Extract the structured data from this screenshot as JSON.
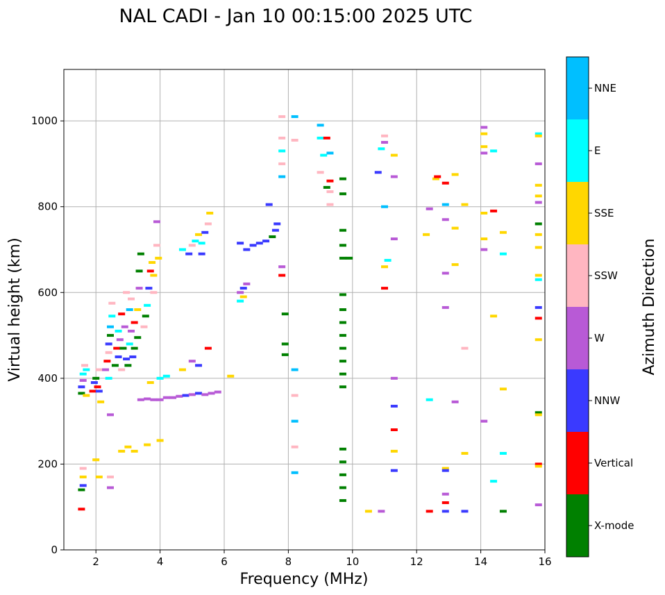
{
  "chart_data": {
    "type": "scatter",
    "title": "NAL CADI - Jan 10 00:15:00 2025 UTC",
    "xlabel": "Frequency (MHz)",
    "ylabel": "Virtual height (km)",
    "xlim": [
      1,
      16
    ],
    "ylim": [
      0,
      1120
    ],
    "xticks": [
      2,
      4,
      6,
      8,
      10,
      12,
      14,
      16
    ],
    "yticks": [
      0,
      200,
      400,
      600,
      800,
      1000
    ],
    "grid": true,
    "colorbar": {
      "title": "Azimuth Direction",
      "categories": [
        {
          "name": "X-mode",
          "color": "#008000"
        },
        {
          "name": "Vertical",
          "color": "#ff0000"
        },
        {
          "name": "NNW",
          "color": "#3a3aff"
        },
        {
          "name": "W",
          "color": "#b85ad6"
        },
        {
          "name": "SSW",
          "color": "#ffb6c1"
        },
        {
          "name": "SSE",
          "color": "#ffd700"
        },
        {
          "name": "E",
          "color": "#00ffff"
        },
        {
          "name": "NNE",
          "color": "#00bfff"
        }
      ]
    },
    "points": [
      [
        1.55,
        95,
        1
      ],
      [
        1.55,
        140,
        0
      ],
      [
        1.6,
        150,
        2
      ],
      [
        1.6,
        170,
        5
      ],
      [
        1.6,
        190,
        4
      ],
      [
        1.55,
        365,
        0
      ],
      [
        1.55,
        380,
        2
      ],
      [
        1.6,
        395,
        3
      ],
      [
        1.6,
        410,
        6
      ],
      [
        1.65,
        430,
        4
      ],
      [
        1.7,
        360,
        5
      ],
      [
        1.7,
        420,
        6
      ],
      [
        1.9,
        370,
        1
      ],
      [
        1.95,
        390,
        2
      ],
      [
        2.0,
        400,
        0
      ],
      [
        2.05,
        380,
        1
      ],
      [
        2.1,
        370,
        2
      ],
      [
        2.1,
        420,
        4
      ],
      [
        2.15,
        345,
        5
      ],
      [
        2.0,
        210,
        5
      ],
      [
        2.1,
        170,
        5
      ],
      [
        2.3,
        420,
        3
      ],
      [
        2.35,
        440,
        1
      ],
      [
        2.4,
        460,
        4
      ],
      [
        2.4,
        480,
        2
      ],
      [
        2.45,
        500,
        0
      ],
      [
        2.45,
        520,
        7
      ],
      [
        2.5,
        545,
        6
      ],
      [
        2.5,
        575,
        4
      ],
      [
        2.4,
        400,
        6
      ],
      [
        2.45,
        170,
        4
      ],
      [
        2.45,
        145,
        3
      ],
      [
        2.45,
        315,
        3
      ],
      [
        2.6,
        430,
        0
      ],
      [
        2.65,
        470,
        1
      ],
      [
        2.7,
        450,
        2
      ],
      [
        2.7,
        510,
        6
      ],
      [
        2.75,
        490,
        3
      ],
      [
        2.8,
        420,
        4
      ],
      [
        2.8,
        550,
        1
      ],
      [
        2.85,
        470,
        0
      ],
      [
        2.9,
        520,
        3
      ],
      [
        2.95,
        445,
        2
      ],
      [
        2.95,
        600,
        4
      ],
      [
        3.0,
        430,
        0
      ],
      [
        3.05,
        480,
        6
      ],
      [
        3.05,
        560,
        7
      ],
      [
        3.1,
        510,
        3
      ],
      [
        3.1,
        585,
        4
      ],
      [
        3.15,
        450,
        2
      ],
      [
        3.2,
        530,
        1
      ],
      [
        3.2,
        470,
        0
      ],
      [
        3.3,
        495,
        0
      ],
      [
        3.3,
        560,
        5
      ],
      [
        3.35,
        610,
        3
      ],
      [
        3.35,
        650,
        0
      ],
      [
        3.4,
        690,
        0
      ],
      [
        3.5,
        520,
        4
      ],
      [
        3.55,
        545,
        0
      ],
      [
        3.6,
        570,
        6
      ],
      [
        3.65,
        610,
        2
      ],
      [
        3.7,
        650,
        1
      ],
      [
        3.75,
        670,
        5
      ],
      [
        3.8,
        600,
        4
      ],
      [
        3.8,
        640,
        5
      ],
      [
        3.9,
        710,
        4
      ],
      [
        3.9,
        765,
        3
      ],
      [
        3.95,
        680,
        5
      ],
      [
        2.8,
        230,
        5
      ],
      [
        3.0,
        240,
        5
      ],
      [
        3.2,
        230,
        5
      ],
      [
        3.6,
        245,
        5
      ],
      [
        4.0,
        255,
        5
      ],
      [
        3.4,
        350,
        3
      ],
      [
        3.6,
        352,
        3
      ],
      [
        3.8,
        350,
        3
      ],
      [
        4.0,
        350,
        3
      ],
      [
        4.2,
        355,
        3
      ],
      [
        4.4,
        355,
        3
      ],
      [
        4.6,
        358,
        3
      ],
      [
        4.8,
        360,
        2
      ],
      [
        5.0,
        362,
        3
      ],
      [
        5.2,
        365,
        2
      ],
      [
        5.4,
        362,
        3
      ],
      [
        5.6,
        365,
        3
      ],
      [
        5.8,
        368,
        3
      ],
      [
        3.7,
        390,
        5
      ],
      [
        4.0,
        400,
        6
      ],
      [
        4.2,
        405,
        6
      ],
      [
        4.7,
        420,
        5
      ],
      [
        5.0,
        440,
        3
      ],
      [
        5.2,
        430,
        2
      ],
      [
        5.5,
        470,
        1
      ],
      [
        6.2,
        405,
        5
      ],
      [
        4.7,
        700,
        6
      ],
      [
        4.9,
        690,
        2
      ],
      [
        5.0,
        710,
        4
      ],
      [
        5.1,
        720,
        6
      ],
      [
        5.2,
        735,
        5
      ],
      [
        5.3,
        715,
        6
      ],
      [
        5.4,
        740,
        2
      ],
      [
        5.5,
        760,
        4
      ],
      [
        5.55,
        785,
        5
      ],
      [
        5.3,
        690,
        2
      ],
      [
        6.5,
        600,
        3
      ],
      [
        6.6,
        610,
        2
      ],
      [
        6.7,
        620,
        3
      ],
      [
        6.5,
        715,
        2
      ],
      [
        6.7,
        700,
        2
      ],
      [
        6.9,
        710,
        2
      ],
      [
        7.1,
        715,
        2
      ],
      [
        7.3,
        720,
        2
      ],
      [
        7.5,
        730,
        0
      ],
      [
        7.6,
        745,
        2
      ],
      [
        7.65,
        760,
        2
      ],
      [
        7.4,
        805,
        2
      ],
      [
        6.5,
        580,
        6
      ],
      [
        6.6,
        590,
        5
      ],
      [
        7.8,
        640,
        1
      ],
      [
        7.8,
        660,
        3
      ],
      [
        7.8,
        870,
        7
      ],
      [
        7.8,
        900,
        4
      ],
      [
        7.8,
        930,
        6
      ],
      [
        7.8,
        960,
        4
      ],
      [
        7.8,
        1010,
        4
      ],
      [
        7.9,
        550,
        0
      ],
      [
        7.9,
        480,
        0
      ],
      [
        7.9,
        455,
        0
      ],
      [
        8.2,
        420,
        7
      ],
      [
        8.2,
        360,
        4
      ],
      [
        8.2,
        300,
        7
      ],
      [
        8.2,
        240,
        4
      ],
      [
        8.2,
        180,
        7
      ],
      [
        8.2,
        1010,
        7
      ],
      [
        8.2,
        955,
        4
      ],
      [
        9.0,
        990,
        7
      ],
      [
        9.0,
        960,
        6
      ],
      [
        9.2,
        960,
        1
      ],
      [
        9.1,
        920,
        6
      ],
      [
        9.3,
        925,
        7
      ],
      [
        9.0,
        880,
        4
      ],
      [
        9.3,
        860,
        1
      ],
      [
        9.2,
        845,
        0
      ],
      [
        9.3,
        805,
        4
      ],
      [
        9.3,
        835,
        4
      ],
      [
        9.7,
        865,
        0
      ],
      [
        9.7,
        830,
        0
      ],
      [
        9.7,
        745,
        0
      ],
      [
        9.7,
        710,
        0
      ],
      [
        9.7,
        680,
        0
      ],
      [
        9.9,
        680,
        0
      ],
      [
        9.7,
        595,
        0
      ],
      [
        9.7,
        560,
        0
      ],
      [
        9.7,
        530,
        0
      ],
      [
        9.7,
        500,
        0
      ],
      [
        9.7,
        470,
        0
      ],
      [
        9.7,
        440,
        0
      ],
      [
        9.7,
        410,
        0
      ],
      [
        9.7,
        380,
        0
      ],
      [
        9.7,
        235,
        0
      ],
      [
        9.7,
        205,
        0
      ],
      [
        9.7,
        175,
        0
      ],
      [
        9.7,
        145,
        0
      ],
      [
        9.7,
        115,
        0
      ],
      [
        10.5,
        90,
        5
      ],
      [
        10.9,
        90,
        3
      ],
      [
        10.8,
        880,
        2
      ],
      [
        10.9,
        935,
        6
      ],
      [
        11.0,
        965,
        4
      ],
      [
        11.0,
        950,
        3
      ],
      [
        11.0,
        800,
        7
      ],
      [
        11.0,
        660,
        5
      ],
      [
        11.0,
        610,
        1
      ],
      [
        11.1,
        675,
        6
      ],
      [
        11.3,
        870,
        3
      ],
      [
        11.3,
        920,
        5
      ],
      [
        11.3,
        725,
        3
      ],
      [
        11.3,
        400,
        3
      ],
      [
        11.3,
        335,
        2
      ],
      [
        11.3,
        280,
        1
      ],
      [
        11.3,
        230,
        5
      ],
      [
        11.3,
        185,
        2
      ],
      [
        12.3,
        735,
        5
      ],
      [
        12.4,
        795,
        3
      ],
      [
        12.6,
        865,
        5
      ],
      [
        12.65,
        870,
        1
      ],
      [
        12.9,
        855,
        1
      ],
      [
        12.9,
        805,
        7
      ],
      [
        12.9,
        770,
        3
      ],
      [
        12.9,
        645,
        3
      ],
      [
        12.9,
        565,
        3
      ],
      [
        13.2,
        875,
        5
      ],
      [
        13.2,
        750,
        5
      ],
      [
        13.2,
        665,
        5
      ],
      [
        13.5,
        805,
        5
      ],
      [
        13.5,
        470,
        4
      ],
      [
        12.4,
        350,
        6
      ],
      [
        12.4,
        90,
        1
      ],
      [
        12.9,
        190,
        5
      ],
      [
        12.9,
        185,
        2
      ],
      [
        12.9,
        130,
        3
      ],
      [
        12.9,
        110,
        1
      ],
      [
        12.9,
        90,
        2
      ],
      [
        13.2,
        345,
        3
      ],
      [
        13.5,
        225,
        5
      ],
      [
        13.5,
        90,
        2
      ],
      [
        14.1,
        985,
        3
      ],
      [
        14.1,
        970,
        5
      ],
      [
        14.1,
        940,
        5
      ],
      [
        14.1,
        925,
        3
      ],
      [
        14.1,
        785,
        5
      ],
      [
        14.1,
        725,
        5
      ],
      [
        14.1,
        700,
        3
      ],
      [
        14.1,
        300,
        3
      ],
      [
        14.4,
        930,
        6
      ],
      [
        14.4,
        790,
        1
      ],
      [
        14.4,
        545,
        5
      ],
      [
        14.4,
        160,
        6
      ],
      [
        14.7,
        740,
        5
      ],
      [
        14.7,
        690,
        6
      ],
      [
        14.7,
        375,
        5
      ],
      [
        14.7,
        225,
        6
      ],
      [
        14.7,
        90,
        0
      ],
      [
        15.8,
        970,
        6
      ],
      [
        15.8,
        965,
        5
      ],
      [
        15.8,
        900,
        3
      ],
      [
        15.8,
        850,
        5
      ],
      [
        15.8,
        825,
        5
      ],
      [
        15.8,
        810,
        3
      ],
      [
        15.8,
        760,
        0
      ],
      [
        15.8,
        735,
        5
      ],
      [
        15.8,
        705,
        5
      ],
      [
        15.8,
        640,
        5
      ],
      [
        15.8,
        630,
        6
      ],
      [
        15.8,
        565,
        2
      ],
      [
        15.8,
        540,
        1
      ],
      [
        15.8,
        490,
        5
      ],
      [
        15.8,
        320,
        0
      ],
      [
        15.8,
        315,
        5
      ],
      [
        15.8,
        200,
        1
      ],
      [
        15.8,
        195,
        5
      ],
      [
        15.8,
        105,
        3
      ]
    ]
  }
}
